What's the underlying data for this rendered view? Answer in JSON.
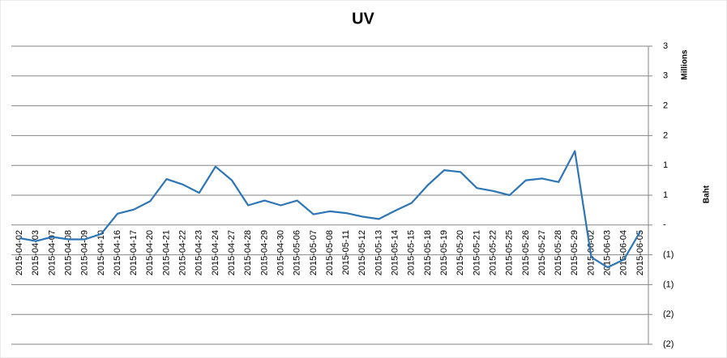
{
  "chart_data": {
    "type": "line",
    "title": "UV",
    "y_label": "Baht",
    "y_unit_label": "Millions",
    "categories": [
      "2015-04-02",
      "2015-04-03",
      "2015-04-07",
      "2015-04-08",
      "2015-04-09",
      "2015-04-10",
      "2015-04-16",
      "2015-04-17",
      "2015-04-20",
      "2015-04-21",
      "2015-04-22",
      "2015-04-23",
      "2015-04-24",
      "2015-04-27",
      "2015-04-28",
      "2015-04-29",
      "2015-04-30",
      "2015-05-06",
      "2015-05-07",
      "2015-05-08",
      "2015-05-11",
      "2015-05-12",
      "2015-05-13",
      "2015-05-14",
      "2015-05-15",
      "2015-05-18",
      "2015-05-19",
      "2015-05-20",
      "2015-05-21",
      "2015-05-22",
      "2015-05-25",
      "2015-05-26",
      "2015-05-27",
      "2015-05-28",
      "2015-05-29",
      "2015-06-02",
      "2015-06-03",
      "2015-06-04",
      "2015-06-05"
    ],
    "values": [
      -0.22,
      -0.27,
      -0.2,
      -0.24,
      -0.24,
      -0.15,
      0.19,
      0.26,
      0.4,
      0.77,
      0.68,
      0.54,
      0.98,
      0.75,
      0.33,
      0.41,
      0.33,
      0.41,
      0.18,
      0.23,
      0.2,
      0.14,
      0.1,
      0.24,
      0.37,
      0.67,
      0.92,
      0.89,
      0.62,
      0.57,
      0.5,
      0.75,
      0.78,
      0.72,
      1.24,
      -0.54,
      -0.71,
      -0.58,
      -0.11
    ],
    "color": "#2e75b6",
    "ylim": [
      -2,
      3
    ],
    "yticks": [
      3,
      {
        "value": 2.5,
        "label": "3"
      },
      2,
      {
        "value": 1.5,
        "label": "2"
      },
      1,
      {
        "value": 0.5,
        "label": "1"
      },
      {
        "value": 0,
        "label": "-"
      },
      {
        "value": -0.5,
        "label": "(1)"
      },
      {
        "value": -1,
        "label": "(1)"
      },
      {
        "value": -1.5,
        "label": "(2)"
      },
      {
        "value": -2,
        "label": "(2)"
      }
    ],
    "grid": true
  }
}
